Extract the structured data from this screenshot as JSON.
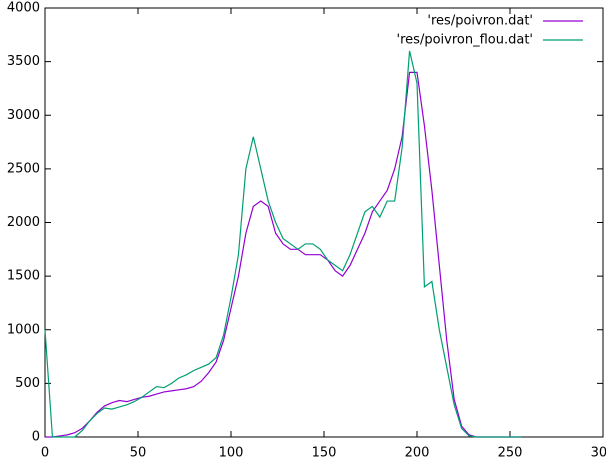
{
  "chart_data": {
    "type": "line",
    "x": [
      0,
      4,
      8,
      12,
      16,
      20,
      24,
      28,
      32,
      36,
      40,
      44,
      48,
      52,
      56,
      60,
      64,
      68,
      72,
      76,
      80,
      84,
      88,
      92,
      96,
      100,
      104,
      108,
      112,
      116,
      120,
      124,
      128,
      132,
      136,
      140,
      144,
      148,
      152,
      156,
      160,
      164,
      168,
      172,
      176,
      180,
      184,
      188,
      192,
      196,
      200,
      204,
      208,
      212,
      216,
      220,
      224,
      228,
      232,
      236,
      240,
      244,
      248,
      252,
      256
    ],
    "series": [
      {
        "name": "'res/poivron.dat'",
        "color": "#9400d3",
        "values": [
          0,
          0,
          10,
          20,
          40,
          80,
          150,
          230,
          290,
          320,
          340,
          330,
          350,
          370,
          380,
          400,
          420,
          430,
          440,
          450,
          470,
          520,
          600,
          700,
          900,
          1200,
          1500,
          1900,
          2150,
          2200,
          2150,
          1900,
          1800,
          1750,
          1750,
          1700,
          1700,
          1700,
          1650,
          1550,
          1500,
          1600,
          1750,
          1900,
          2100,
          2200,
          2300,
          2500,
          2800,
          3400,
          3400,
          2900,
          2300,
          1600,
          900,
          350,
          100,
          20,
          0,
          0,
          0,
          0,
          0,
          0,
          0
        ]
      },
      {
        "name": "'res/poivron_flou.dat'",
        "color": "#009e73",
        "values": [
          1000,
          0,
          0,
          0,
          0,
          60,
          150,
          220,
          270,
          260,
          280,
          300,
          330,
          370,
          420,
          470,
          460,
          500,
          550,
          580,
          620,
          650,
          680,
          740,
          950,
          1300,
          1700,
          2500,
          2800,
          2500,
          2200,
          2000,
          1850,
          1800,
          1750,
          1800,
          1800,
          1750,
          1650,
          1600,
          1550,
          1700,
          1900,
          2100,
          2150,
          2050,
          2200,
          2200,
          2700,
          3600,
          3300,
          1400,
          1450,
          1000,
          650,
          300,
          80,
          10,
          0,
          0,
          0,
          0,
          0,
          0,
          0
        ]
      }
    ],
    "xlim": [
      0,
      300
    ],
    "xticks": [
      0,
      50,
      100,
      150,
      200,
      250,
      300
    ],
    "ylim": [
      0,
      4000
    ],
    "yticks": [
      0,
      500,
      1000,
      1500,
      2000,
      2500,
      3000,
      3500,
      4000
    ],
    "legend": "upper-right"
  }
}
